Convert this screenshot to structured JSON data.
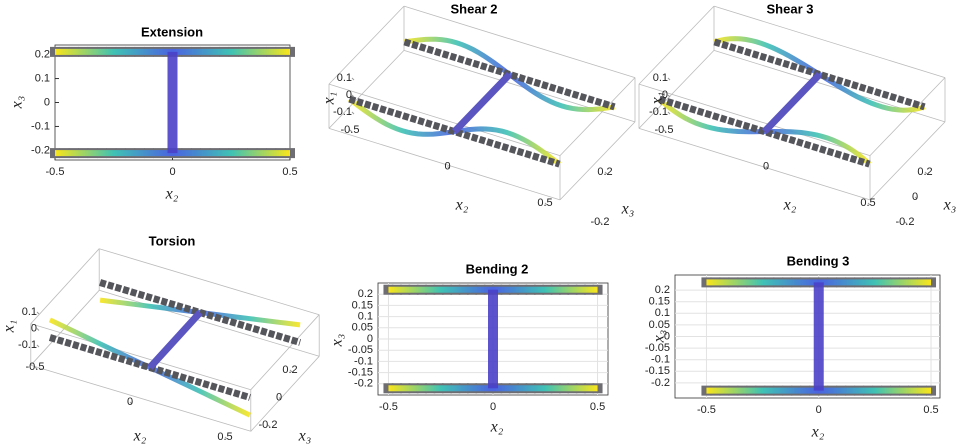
{
  "panels": [
    {
      "title": "Extension",
      "type": "2d",
      "xlabel": "x₂",
      "ylabel": "x₃",
      "xlim": [
        -0.5,
        0.5
      ],
      "ylim": [
        -0.24,
        0.24
      ],
      "xticks": [
        -0.5,
        0,
        0.5
      ],
      "yticks": [
        -0.2,
        -0.1,
        0,
        0.1,
        0.2
      ],
      "grid": false
    },
    {
      "title": "Shear 2",
      "type": "3d",
      "xlabel": "x₂",
      "ylabel": "x₃",
      "zlabel": "x₁",
      "xlim": [
        -0.5,
        0.5
      ],
      "ylim": [
        -0.2,
        0.2
      ],
      "zlim": [
        -0.1,
        0.1
      ],
      "xticks": [
        -0.5,
        0,
        0.5
      ],
      "yticks": [
        -0.2,
        0.2
      ],
      "zticks": [
        -0.1,
        0,
        0.1
      ]
    },
    {
      "title": "Shear 3",
      "type": "3d",
      "xlabel": "x₂",
      "ylabel": "x₃",
      "zlabel": "x₁",
      "xlim": [
        -0.5,
        0.5
      ],
      "ylim": [
        -0.2,
        0.2
      ],
      "zlim": [
        -0.1,
        0.1
      ],
      "xticks": [
        -0.5,
        0,
        0.5
      ],
      "yticks": [
        -0.2,
        0,
        0.2
      ],
      "zticks": [
        -0.1,
        0,
        0.1
      ]
    },
    {
      "title": "Torsion",
      "type": "3d",
      "xlabel": "x₂",
      "ylabel": "x₃",
      "zlabel": "x₁",
      "xlim": [
        -0.5,
        0.5
      ],
      "ylim": [
        -0.2,
        0.2
      ],
      "zlim": [
        -0.1,
        0.1
      ],
      "xticks": [
        -0.5,
        0,
        0.5
      ],
      "yticks": [
        -0.2,
        0,
        0.2
      ],
      "zticks": [
        -0.1,
        0,
        0.1
      ]
    },
    {
      "title": "Bending 2",
      "type": "2d",
      "xlabel": "x₂",
      "ylabel": "x₃",
      "xlim": [
        -0.55,
        0.55
      ],
      "ylim": [
        -0.25,
        0.25
      ],
      "xticks": [
        -0.5,
        0,
        0.5
      ],
      "yticks": [
        -0.2,
        -0.15,
        -0.1,
        -0.05,
        0,
        0.05,
        0.1,
        0.15,
        0.2
      ],
      "grid": true
    },
    {
      "title": "Bending 3",
      "type": "2d",
      "xlabel": "x₂",
      "ylabel": "x₃",
      "xlim": [
        -0.64,
        0.54
      ],
      "ylim": [
        -0.265,
        0.265
      ],
      "xticks": [
        -0.5,
        0,
        0.5
      ],
      "yticks": [
        -0.2,
        -0.15,
        -0.1,
        -0.05,
        0,
        0.05,
        0.1,
        0.15,
        0.2
      ],
      "grid": true
    }
  ]
}
